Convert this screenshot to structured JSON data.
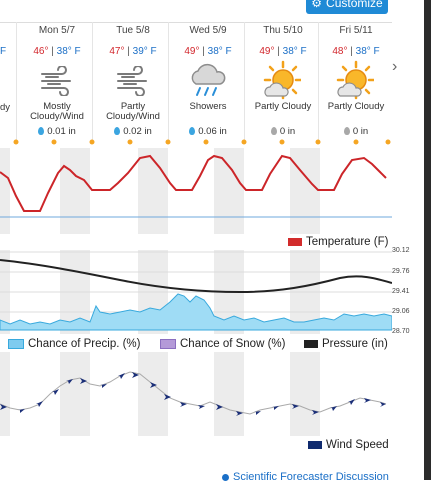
{
  "header": {
    "customize_label": "Customize"
  },
  "days": [
    {
      "label": "Mon 5/7",
      "high": "46°",
      "low": "38° F",
      "icon": "wind-icon",
      "condition": "Mostly Cloudy/Wind",
      "precip": "0.01 in",
      "drop_color": "#3ba5e0"
    },
    {
      "label": "Tue 5/8",
      "high": "47°",
      "low": "39° F",
      "icon": "wind-icon",
      "condition": "Partly Cloudy/Wind",
      "precip": "0.02 in",
      "drop_color": "#3ba5e0"
    },
    {
      "label": "Wed 5/9",
      "high": "49°",
      "low": "38° F",
      "icon": "showers-icon",
      "condition": "Showers",
      "precip": "0.06 in",
      "drop_color": "#3ba5e0"
    },
    {
      "label": "Thu 5/10",
      "high": "49°",
      "low": "38° F",
      "icon": "partly-cloudy-icon",
      "condition": "Partly Cloudy",
      "precip": "0 in",
      "drop_color": "#a8a8a8"
    },
    {
      "label": "Fri 5/11",
      "high": "48°",
      "low": "38° F",
      "icon": "partly-cloudy-icon",
      "condition": "Partly Cloudy",
      "precip": "0 in",
      "drop_color": "#a8a8a8"
    }
  ],
  "partial_left": {
    "top": "F",
    "cond": "dy"
  },
  "temp_separator": "|",
  "legends": {
    "temperature": "Temperature (F)",
    "precip": "Chance of Precip. (%)",
    "snow": "Chance of Snow (%)",
    "pressure": "Pressure (in)",
    "wind": "Wind Speed"
  },
  "pressure_axis": [
    "30.12",
    "29.76",
    "29.41",
    "29.06",
    "28.70"
  ],
  "colors": {
    "temperature": "#cc2529",
    "precip": "#7ecbef",
    "snow": "#b49ad8",
    "pressure": "#222222",
    "wind": "#1b2f78",
    "accent": "#1f8ad6"
  },
  "footer": {
    "discussion_link": "Scientific Forecaster Discussion"
  }
}
